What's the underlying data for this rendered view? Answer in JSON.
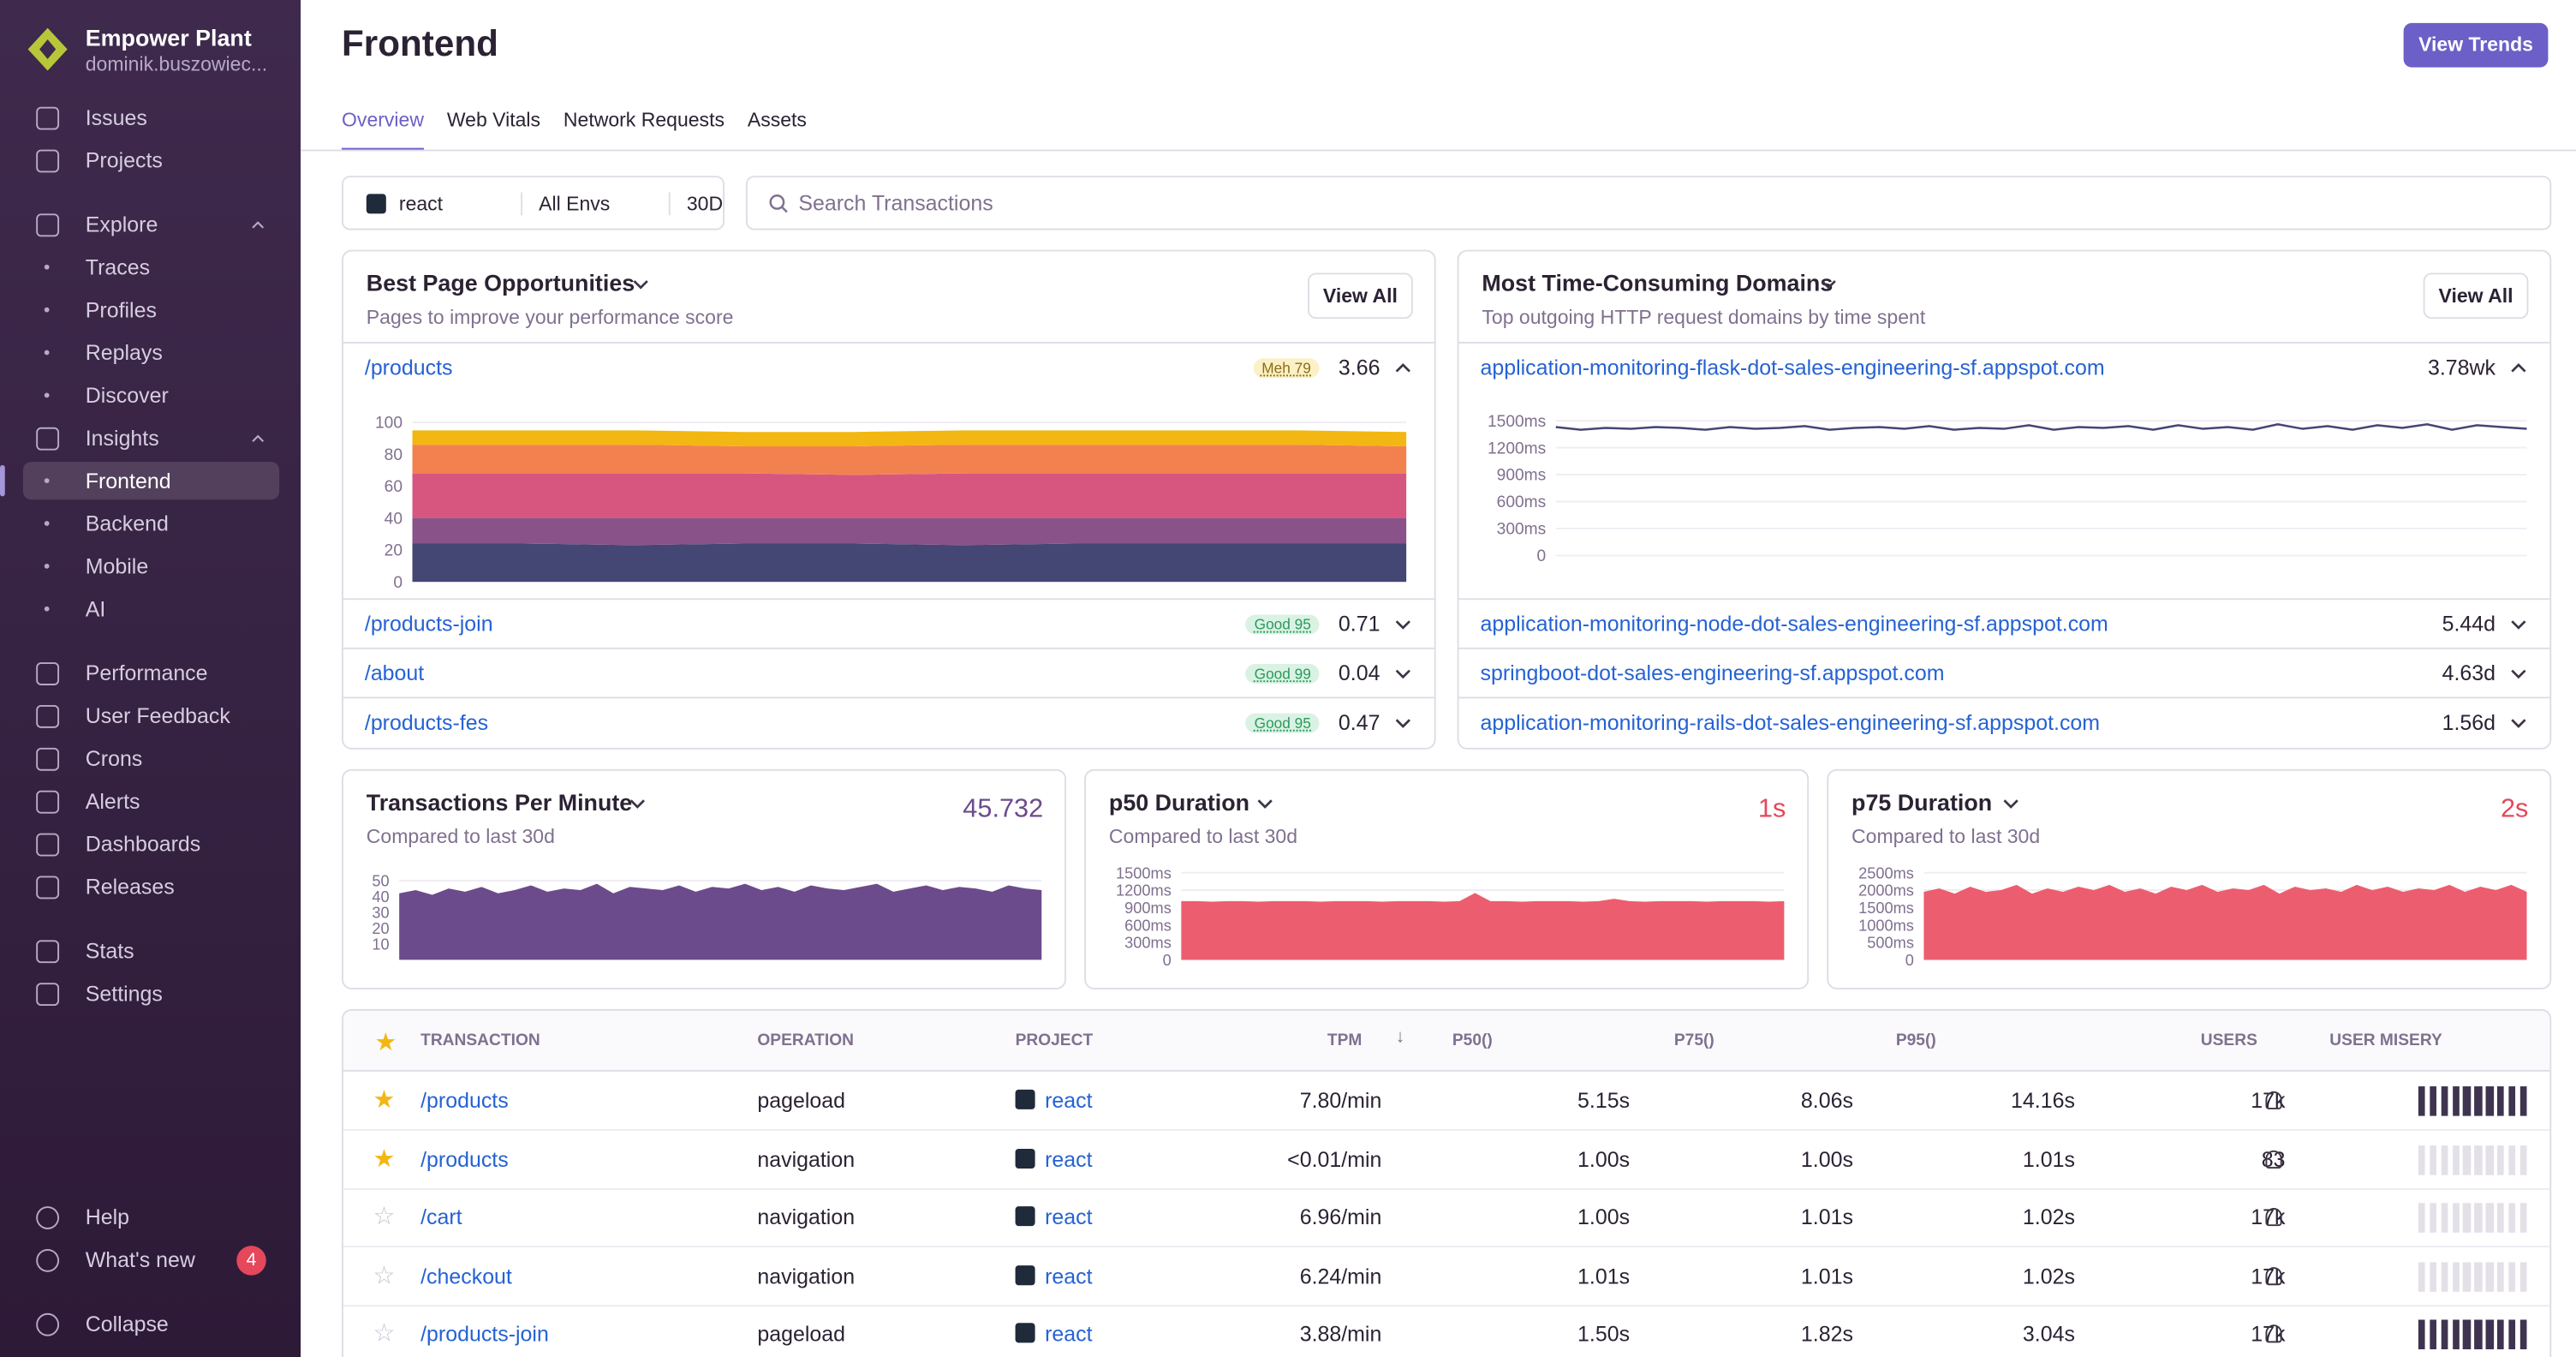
{
  "sidebar": {
    "org": "Empower Plant",
    "user": "dominik.buszowiec...",
    "groups": [
      [
        {
          "label": "Issues"
        },
        {
          "label": "Projects"
        }
      ],
      [
        {
          "label": "Explore",
          "expand": true
        },
        {
          "label": "Traces",
          "sub": true
        },
        {
          "label": "Profiles",
          "sub": true
        },
        {
          "label": "Replays",
          "sub": true
        },
        {
          "label": "Discover",
          "sub": true
        },
        {
          "label": "Insights",
          "expand": true
        },
        {
          "label": "Frontend",
          "sub": true,
          "active": true
        },
        {
          "label": "Backend",
          "sub": true
        },
        {
          "label": "Mobile",
          "sub": true
        },
        {
          "label": "AI",
          "sub": true
        }
      ],
      [
        {
          "label": "Performance"
        },
        {
          "label": "User Feedback"
        },
        {
          "label": "Crons"
        },
        {
          "label": "Alerts"
        },
        {
          "label": "Dashboards"
        },
        {
          "label": "Releases"
        }
      ],
      [
        {
          "label": "Stats"
        },
        {
          "label": "Settings"
        }
      ]
    ],
    "footer": [
      {
        "label": "Help"
      },
      {
        "label": "What's new",
        "badge": 4
      },
      {
        "label": "Collapse"
      }
    ]
  },
  "header": {
    "title": "Frontend",
    "button": "View Trends",
    "tabs": [
      "Overview",
      "Web Vitals",
      "Network Requests",
      "Assets"
    ]
  },
  "filters": {
    "project": "react",
    "env": "All Envs",
    "period": "30D",
    "search": "Search Transactions"
  },
  "pages": {
    "title": "Best Page Opportunities",
    "subtitle": "Pages to improve your performance score",
    "button": "View All",
    "rows": [
      {
        "name": "/products",
        "badge": "Meh 79",
        "value": "3.66"
      },
      {
        "name": "/products-join",
        "badge": "Good 95",
        "value": "0.71"
      },
      {
        "name": "/about",
        "badge": "Good 99",
        "value": "0.04"
      },
      {
        "name": "/products-fes",
        "badge": "Good 95",
        "value": "0.47"
      }
    ],
    "chart": {
      "type": "stacked-area",
      "ylim": [
        0,
        100
      ],
      "yticks": [
        0,
        20,
        40,
        60,
        80,
        100
      ],
      "series": [
        {
          "color": "#444674",
          "values": [
            24,
            24,
            23,
            24,
            24,
            23,
            24,
            24,
            24,
            24
          ]
        },
        {
          "color": "#895289",
          "values": [
            16,
            16,
            17,
            16,
            16,
            17,
            16,
            16,
            16,
            16
          ]
        },
        {
          "color": "#d6567f",
          "values": [
            28,
            28,
            28,
            28,
            27,
            28,
            28,
            28,
            28,
            28
          ]
        },
        {
          "color": "#f38150",
          "values": [
            18,
            18,
            18,
            17,
            18,
            18,
            18,
            18,
            18,
            17
          ]
        },
        {
          "color": "#f2b712",
          "values": [
            9,
            9,
            9,
            9,
            9,
            9,
            9,
            9,
            9,
            9
          ]
        }
      ]
    }
  },
  "domains": {
    "title": "Most Time-Consuming Domains",
    "subtitle": "Top outgoing HTTP request domains by time spent",
    "button": "View All",
    "rows": [
      {
        "name": "application-monitoring-flask-dot-sales-engineering-sf.appspot.com",
        "value": "3.78wk"
      },
      {
        "name": "application-monitoring-node-dot-sales-engineering-sf.appspot.com",
        "value": "5.44d"
      },
      {
        "name": "springboot-dot-sales-engineering-sf.appspot.com",
        "value": "4.63d"
      },
      {
        "name": "application-monitoring-rails-dot-sales-engineering-sf.appspot.com",
        "value": "1.56d"
      }
    ],
    "chart": {
      "type": "line",
      "color": "#444674",
      "ylim": [
        0,
        1500
      ],
      "yticks": [
        0,
        {
          "value": 300,
          "label": "300ms"
        },
        {
          "value": 600,
          "label": "600ms"
        },
        {
          "value": 900,
          "label": "900ms"
        },
        {
          "value": 1200,
          "label": "1200ms"
        },
        {
          "value": 1500,
          "label": "1500ms"
        }
      ],
      "values": [
        1430,
        1400,
        1420,
        1410,
        1430,
        1420,
        1400,
        1430,
        1410,
        1420,
        1440,
        1400,
        1420,
        1430,
        1410,
        1440,
        1400,
        1420,
        1410,
        1450,
        1400,
        1430,
        1420,
        1440,
        1400,
        1450,
        1410,
        1430,
        1400,
        1460,
        1410,
        1440,
        1400,
        1450,
        1420,
        1460,
        1400,
        1450,
        1430,
        1410
      ]
    }
  },
  "metrics": [
    {
      "title": "Transactions Per Minute",
      "subtitle": "Compared to last 30d",
      "value": "45.732",
      "color": "#6c4b8c",
      "chart": {
        "type": "area",
        "color": "#6c4b8c",
        "ylim": [
          0,
          55
        ],
        "yticks": [
          10,
          20,
          30,
          40,
          50
        ],
        "values": [
          42,
          44,
          41,
          45,
          43,
          46,
          42,
          44,
          47,
          43,
          45,
          44,
          48,
          42,
          46,
          45,
          44,
          47,
          43,
          46,
          45,
          48,
          44,
          46,
          43,
          47,
          45,
          44,
          46,
          48,
          43,
          45,
          47,
          44,
          46,
          45,
          43,
          47,
          45,
          44
        ]
      }
    },
    {
      "title": "p50 Duration",
      "subtitle": "Compared to last 30d",
      "value": "1s",
      "color": "#e5475b",
      "chart": {
        "type": "area",
        "color": "#ec5e6f",
        "ylim": [
          0,
          1500
        ],
        "yticks": [
          0,
          {
            "value": 300,
            "label": "300ms"
          },
          {
            "value": 600,
            "label": "600ms"
          },
          {
            "value": 900,
            "label": "900ms"
          },
          {
            "value": 1200,
            "label": "1200ms"
          },
          {
            "value": 1500,
            "label": "1500ms"
          }
        ],
        "values": [
          1010,
          1010,
          1000,
          1010,
          1010,
          1000,
          1010,
          1010,
          1010,
          1000,
          1010,
          1010,
          1010,
          1000,
          1010,
          1010,
          1010,
          1000,
          1010,
          1150,
          1010,
          1010,
          1000,
          1010,
          1010,
          1010,
          1000,
          1010,
          1050,
          1010,
          1000,
          1010,
          1010,
          1010,
          1000,
          1010,
          1010,
          1010,
          1000,
          1010
        ]
      }
    },
    {
      "title": "p75 Duration",
      "subtitle": "Compared to last 30d",
      "value": "2s",
      "color": "#e5475b",
      "chart": {
        "type": "area",
        "color": "#ec5e6f",
        "ylim": [
          0,
          2500
        ],
        "yticks": [
          0,
          {
            "value": 500,
            "label": "500ms"
          },
          {
            "value": 1000,
            "label": "1000ms"
          },
          {
            "value": 1500,
            "label": "1500ms"
          },
          {
            "value": 2000,
            "label": "2000ms"
          },
          {
            "value": 2500,
            "label": "2500ms"
          }
        ],
        "values": [
          1950,
          2050,
          1900,
          2100,
          1950,
          2000,
          2150,
          1900,
          2050,
          1950,
          2100,
          2000,
          2150,
          1950,
          2050,
          1900,
          2100,
          2000,
          2150,
          1950,
          2050,
          2000,
          2150,
          1900,
          2100,
          2000,
          2050,
          1950,
          2150,
          2000,
          2100,
          1950,
          2050,
          2000,
          2150,
          1950,
          2100,
          2000,
          2150,
          1950
        ]
      }
    }
  ],
  "table": {
    "headers": [
      "TRANSACTION",
      "OPERATION",
      "PROJECT",
      "TPM",
      "P50()",
      "P75()",
      "P95()",
      "USERS",
      "USER MISERY"
    ],
    "rows": [
      {
        "starred": true,
        "transaction": "/products",
        "operation": "pageload",
        "project": "react",
        "tpm": "7.80/min",
        "p50": "5.15s",
        "p75": "8.06s",
        "p95": "14.16s",
        "users": "17k",
        "misery": 10
      },
      {
        "starred": true,
        "transaction": "/products",
        "operation": "navigation",
        "project": "react",
        "tpm": "<0.01/min",
        "p50": "1.00s",
        "p75": "1.00s",
        "p95": "1.01s",
        "users": "83",
        "misery": 0
      },
      {
        "starred": false,
        "transaction": "/cart",
        "operation": "navigation",
        "project": "react",
        "tpm": "6.96/min",
        "p50": "1.00s",
        "p75": "1.01s",
        "p95": "1.02s",
        "users": "17k",
        "misery": 0
      },
      {
        "starred": false,
        "transaction": "/checkout",
        "operation": "navigation",
        "project": "react",
        "tpm": "6.24/min",
        "p50": "1.01s",
        "p75": "1.01s",
        "p95": "1.02s",
        "users": "17k",
        "misery": 0
      },
      {
        "starred": false,
        "transaction": "/products-join",
        "operation": "pageload",
        "project": "react",
        "tpm": "3.88/min",
        "p50": "1.50s",
        "p75": "1.82s",
        "p95": "3.04s",
        "users": "17k",
        "misery": 10
      }
    ]
  }
}
